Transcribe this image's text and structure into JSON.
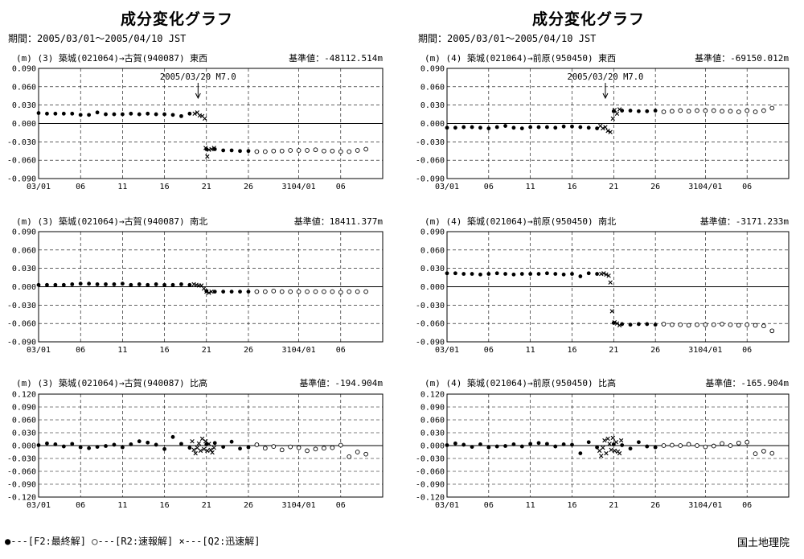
{
  "page": {
    "left_title": "成分変化グラフ",
    "right_title": "成分変化グラフ",
    "left_period": "期間：2005/03/01～2005/04/10 JST",
    "right_period": "期間：2005/03/01～2005/04/10 JST",
    "legend": "●---[F2:最終解]  ○---[R2:速報解]  ×---[Q2:迅速解]",
    "organization": "国土地理院"
  },
  "chart_data": [
    {
      "type": "scatter",
      "title": "(m) (3) 築城(021064)→古賀(940087)  東西",
      "reference": "基準値：-48112.514m",
      "annotation": "2005/03/20 M7.0",
      "annotation_x": 20,
      "x_ticks": [
        "03/01",
        "06",
        "11",
        "16",
        "21",
        "26",
        "3104/01",
        "06"
      ],
      "ylim": [
        -0.09,
        0.09
      ],
      "y_ticks": [
        "0.090",
        "0.060",
        "0.030",
        "0.000",
        "-0.030",
        "-0.060",
        "-0.090"
      ],
      "series": [
        {
          "marker": "filled",
          "x": [
            1,
            2,
            3,
            4,
            5,
            6,
            7,
            8,
            9,
            10,
            11,
            12,
            13,
            14,
            15,
            16,
            17,
            18,
            19,
            21,
            22,
            23,
            24,
            25,
            26
          ],
          "y": [
            0.017,
            0.016,
            0.016,
            0.016,
            0.016,
            0.014,
            0.014,
            0.018,
            0.015,
            0.015,
            0.015,
            0.016,
            0.015,
            0.016,
            0.015,
            0.015,
            0.014,
            0.012,
            0.016,
            -0.042,
            -0.042,
            -0.044,
            -0.044,
            -0.045,
            -0.045
          ]
        },
        {
          "marker": "open",
          "x": [
            27,
            28,
            29,
            30,
            31,
            32,
            33,
            34,
            35,
            36,
            37,
            38,
            39,
            40
          ],
          "y": [
            -0.046,
            -0.046,
            -0.045,
            -0.045,
            -0.044,
            -0.044,
            -0.044,
            -0.043,
            -0.045,
            -0.045,
            -0.046,
            -0.046,
            -0.044,
            -0.042
          ]
        },
        {
          "marker": "cross",
          "x": [
            19.6,
            19.9,
            20.2,
            20.5,
            20.8,
            20.9,
            21.1,
            21.3,
            21.6,
            21.9
          ],
          "y": [
            0.016,
            0.018,
            0.013,
            0.012,
            0.008,
            -0.04,
            -0.054,
            -0.043,
            -0.042,
            -0.04
          ]
        }
      ]
    },
    {
      "type": "scatter",
      "title": "(m) (4) 築城(021064)→前原(950450)  東西",
      "reference": "基準値：-69150.012m",
      "annotation": "2005/03/20 M7.0",
      "annotation_x": 20,
      "x_ticks": [
        "03/01",
        "06",
        "11",
        "16",
        "21",
        "26",
        "3104/01",
        "06"
      ],
      "ylim": [
        -0.09,
        0.09
      ],
      "y_ticks": [
        "0.090",
        "0.060",
        "0.030",
        "0.000",
        "-0.030",
        "-0.060",
        "-0.090"
      ],
      "series": [
        {
          "marker": "filled",
          "x": [
            1,
            2,
            3,
            4,
            5,
            6,
            7,
            8,
            9,
            10,
            11,
            12,
            13,
            14,
            15,
            16,
            17,
            18,
            19,
            21,
            22,
            23,
            24,
            25,
            26
          ],
          "y": [
            -0.007,
            -0.007,
            -0.006,
            -0.006,
            -0.007,
            -0.008,
            -0.006,
            -0.004,
            -0.007,
            -0.008,
            -0.006,
            -0.006,
            -0.006,
            -0.007,
            -0.005,
            -0.005,
            -0.006,
            -0.007,
            -0.008,
            0.02,
            0.021,
            0.021,
            0.02,
            0.02,
            0.021
          ]
        },
        {
          "marker": "open",
          "x": [
            27,
            28,
            29,
            30,
            31,
            32,
            33,
            34,
            35,
            36,
            37,
            38,
            39,
            40
          ],
          "y": [
            0.019,
            0.02,
            0.021,
            0.02,
            0.021,
            0.021,
            0.021,
            0.02,
            0.02,
            0.019,
            0.021,
            0.019,
            0.021,
            0.025
          ]
        },
        {
          "marker": "cross",
          "x": [
            19.4,
            19.7,
            20.0,
            20.3,
            20.6,
            20.9,
            21.1,
            21.4,
            21.7
          ],
          "y": [
            -0.004,
            -0.008,
            -0.006,
            -0.012,
            -0.014,
            0.008,
            0.022,
            0.016,
            0.023
          ]
        }
      ]
    },
    {
      "type": "scatter",
      "title": "(m) (3) 築城(021064)→古賀(940087)  南北",
      "reference": "基準値：18411.377m",
      "x_ticks": [
        "03/01",
        "06",
        "11",
        "16",
        "21",
        "26",
        "3104/01",
        "06"
      ],
      "ylim": [
        -0.09,
        0.09
      ],
      "y_ticks": [
        "0.090",
        "0.060",
        "0.030",
        "0.000",
        "-0.030",
        "-0.060",
        "-0.090"
      ],
      "series": [
        {
          "marker": "filled",
          "x": [
            1,
            2,
            3,
            4,
            5,
            6,
            7,
            8,
            9,
            10,
            11,
            12,
            13,
            14,
            15,
            16,
            17,
            18,
            19,
            21,
            22,
            23,
            24,
            25,
            26
          ],
          "y": [
            0.003,
            0.003,
            0.003,
            0.003,
            0.004,
            0.005,
            0.005,
            0.004,
            0.004,
            0.004,
            0.005,
            0.003,
            0.004,
            0.003,
            0.004,
            0.003,
            0.003,
            0.004,
            0.003,
            -0.007,
            -0.008,
            -0.008,
            -0.008,
            -0.008,
            -0.008
          ]
        },
        {
          "marker": "open",
          "x": [
            27,
            28,
            29,
            30,
            31,
            32,
            33,
            34,
            35,
            36,
            37,
            38,
            39,
            40
          ],
          "y": [
            -0.008,
            -0.008,
            -0.007,
            -0.008,
            -0.008,
            -0.008,
            -0.008,
            -0.008,
            -0.008,
            -0.008,
            -0.009,
            -0.008,
            -0.008,
            -0.008
          ]
        },
        {
          "marker": "cross",
          "x": [
            19.5,
            19.8,
            20.1,
            20.4,
            20.7,
            21.0,
            21.3,
            21.6
          ],
          "y": [
            0.004,
            0.003,
            0.002,
            0.002,
            -0.003,
            -0.008,
            -0.01,
            -0.008
          ]
        }
      ]
    },
    {
      "type": "scatter",
      "title": "(m) (4) 築城(021064)→前原(950450)  南北",
      "reference": "基準値：-3171.233m",
      "x_ticks": [
        "03/01",
        "06",
        "11",
        "16",
        "21",
        "26",
        "3104/01",
        "06"
      ],
      "ylim": [
        -0.09,
        0.09
      ],
      "y_ticks": [
        "0.090",
        "0.060",
        "0.030",
        "0.000",
        "-0.030",
        "-0.060",
        "-0.090"
      ],
      "series": [
        {
          "marker": "filled",
          "x": [
            1,
            2,
            3,
            4,
            5,
            6,
            7,
            8,
            9,
            10,
            11,
            12,
            13,
            14,
            15,
            16,
            17,
            18,
            19,
            21,
            22,
            23,
            24,
            25,
            26
          ],
          "y": [
            0.022,
            0.022,
            0.021,
            0.021,
            0.02,
            0.021,
            0.022,
            0.021,
            0.02,
            0.021,
            0.021,
            0.021,
            0.022,
            0.021,
            0.02,
            0.021,
            0.017,
            0.022,
            0.021,
            -0.059,
            -0.061,
            -0.062,
            -0.061,
            -0.061,
            -0.062
          ]
        },
        {
          "marker": "open",
          "x": [
            27,
            28,
            29,
            30,
            31,
            32,
            33,
            34,
            35,
            36,
            37,
            38,
            39,
            40
          ],
          "y": [
            -0.061,
            -0.062,
            -0.062,
            -0.063,
            -0.062,
            -0.062,
            -0.062,
            -0.061,
            -0.062,
            -0.063,
            -0.062,
            -0.063,
            -0.064,
            -0.072
          ]
        },
        {
          "marker": "cross",
          "x": [
            19.5,
            19.8,
            20.1,
            20.4,
            20.6,
            20.8,
            21.1,
            21.4,
            21.7
          ],
          "y": [
            0.021,
            0.022,
            0.02,
            0.018,
            0.007,
            -0.04,
            -0.058,
            -0.06,
            -0.063
          ]
        }
      ]
    },
    {
      "type": "scatter",
      "title": "(m) (3) 築城(021064)→古賀(940087)  比高",
      "reference": "基準値：-194.904m",
      "x_ticks": [
        "03/01",
        "06",
        "11",
        "16",
        "21",
        "26",
        "3104/01",
        "06"
      ],
      "ylim": [
        -0.12,
        0.12
      ],
      "y_ticks": [
        "0.120",
        "0.090",
        "0.060",
        "0.030",
        "0.000",
        "-0.030",
        "-0.060",
        "-0.090",
        "-0.120"
      ],
      "series": [
        {
          "marker": "filled",
          "x": [
            1,
            2,
            3,
            4,
            5,
            6,
            7,
            8,
            9,
            10,
            11,
            12,
            13,
            14,
            15,
            16,
            17,
            18,
            19,
            21,
            22,
            23,
            24,
            25,
            26
          ],
          "y": [
            0.001,
            0.005,
            0.003,
            -0.002,
            0.004,
            -0.004,
            -0.006,
            -0.003,
            -0.001,
            0.002,
            -0.004,
            0.003,
            0.01,
            0.007,
            0.002,
            -0.008,
            0.02,
            0.004,
            -0.005,
            0.003,
            0.006,
            -0.003,
            0.009,
            -0.007,
            -0.004
          ]
        },
        {
          "marker": "open",
          "x": [
            27,
            28,
            29,
            30,
            31,
            32,
            33,
            34,
            35,
            36,
            37,
            38,
            39,
            40
          ],
          "y": [
            0.002,
            -0.006,
            -0.002,
            -0.01,
            -0.003,
            -0.005,
            -0.012,
            -0.008,
            -0.006,
            -0.005,
            0.001,
            -0.026,
            -0.015,
            -0.02
          ]
        },
        {
          "marker": "cross",
          "x": [
            19.3,
            19.5,
            19.7,
            19.9,
            20.1,
            20.3,
            20.5,
            20.7,
            20.9,
            21.1,
            21.3,
            21.5,
            21.7,
            21.9
          ],
          "y": [
            0.01,
            -0.01,
            -0.018,
            -0.005,
            0.005,
            -0.012,
            0.016,
            -0.008,
            0.01,
            -0.012,
            0.004,
            -0.01,
            -0.016,
            -0.005
          ]
        }
      ]
    },
    {
      "type": "scatter",
      "title": "(m) (4) 築城(021064)→前原(950450)  比高",
      "reference": "基準値：-165.904m",
      "x_ticks": [
        "03/01",
        "06",
        "11",
        "16",
        "21",
        "26",
        "3104/01",
        "06"
      ],
      "ylim": [
        -0.12,
        0.12
      ],
      "y_ticks": [
        "0.120",
        "0.090",
        "0.060",
        "0.030",
        "0.000",
        "-0.030",
        "-0.060",
        "-0.090",
        "-0.120"
      ],
      "series": [
        {
          "marker": "filled",
          "x": [
            1,
            2,
            3,
            4,
            5,
            6,
            7,
            8,
            9,
            10,
            11,
            12,
            13,
            14,
            15,
            16,
            17,
            18,
            19,
            21,
            22,
            23,
            24,
            25,
            26
          ],
          "y": [
            0.001,
            0.005,
            0.002,
            -0.003,
            0.003,
            -0.004,
            -0.002,
            -0.001,
            0.003,
            -0.002,
            0.004,
            0.006,
            0.004,
            -0.002,
            0.003,
            0.002,
            -0.018,
            0.008,
            -0.004,
            0.003,
            0.001,
            -0.007,
            0.008,
            -0.002,
            -0.004
          ]
        },
        {
          "marker": "open",
          "x": [
            27,
            28,
            29,
            30,
            31,
            32,
            33,
            34,
            35,
            36,
            37,
            38,
            39,
            40
          ],
          "y": [
            0.0,
            0.001,
            0.0,
            0.003,
            0.0,
            -0.003,
            -0.001,
            0.005,
            0.0,
            0.006,
            0.008,
            -0.019,
            -0.013,
            -0.018
          ]
        },
        {
          "marker": "cross",
          "x": [
            19.3,
            19.5,
            19.7,
            19.9,
            20.1,
            20.3,
            20.5,
            20.7,
            20.9,
            21.1,
            21.3,
            21.5,
            21.7,
            21.9
          ],
          "y": [
            -0.012,
            -0.024,
            -0.005,
            0.012,
            -0.018,
            0.016,
            0.004,
            -0.01,
            0.018,
            -0.012,
            0.008,
            -0.014,
            -0.018,
            0.012
          ]
        }
      ]
    }
  ]
}
